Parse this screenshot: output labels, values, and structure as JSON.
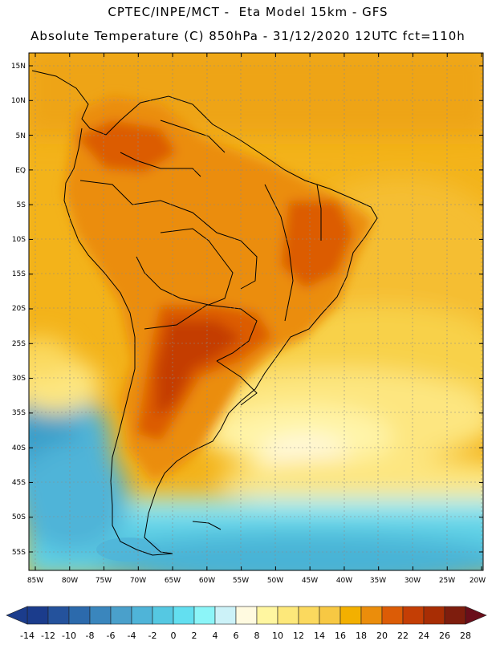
{
  "header": {
    "title_line1": "CPTEC/INPE/MCT -  Eta Model 15km - GFS",
    "title_line2": "Absolute Temperature (C) 850hPa - 31/12/2020 12UTC fct=110h"
  },
  "map": {
    "lat_labels": [
      "15N",
      "10N",
      "5N",
      "EQ",
      "5S",
      "10S",
      "15S",
      "20S",
      "25S",
      "30S",
      "35S",
      "40S",
      "45S",
      "50S",
      "55S"
    ],
    "lon_labels": [
      "85W",
      "80W",
      "75W",
      "70W",
      "65W",
      "60W",
      "55W",
      "50W",
      "45W",
      "40W",
      "35W",
      "30W",
      "25W",
      "20W"
    ],
    "lat_range_deg": [
      15,
      -55
    ],
    "lon_range_deg": [
      -85,
      -20
    ]
  },
  "colorbar": {
    "tick_labels": [
      "-14",
      "-12",
      "-10",
      "-8",
      "-6",
      "-4",
      "-2",
      "0",
      "2",
      "4",
      "6",
      "8",
      "10",
      "12",
      "14",
      "16",
      "18",
      "20",
      "22",
      "24",
      "26",
      "28"
    ],
    "colors": [
      "#1b3c8c",
      "#24529c",
      "#2c6aac",
      "#3a86bd",
      "#4aa0cb",
      "#4fb4d8",
      "#55c8e2",
      "#63dff0",
      "#8cf5f8",
      "#ccf2f8",
      "#fffae0",
      "#fff6a0",
      "#fde87a",
      "#fbd95e",
      "#f7c843",
      "#f3b000",
      "#eb8d0b",
      "#dc5c06",
      "#c43e05",
      "#a82d04",
      "#7e1d0d",
      "#6a0e1a"
    ]
  }
}
